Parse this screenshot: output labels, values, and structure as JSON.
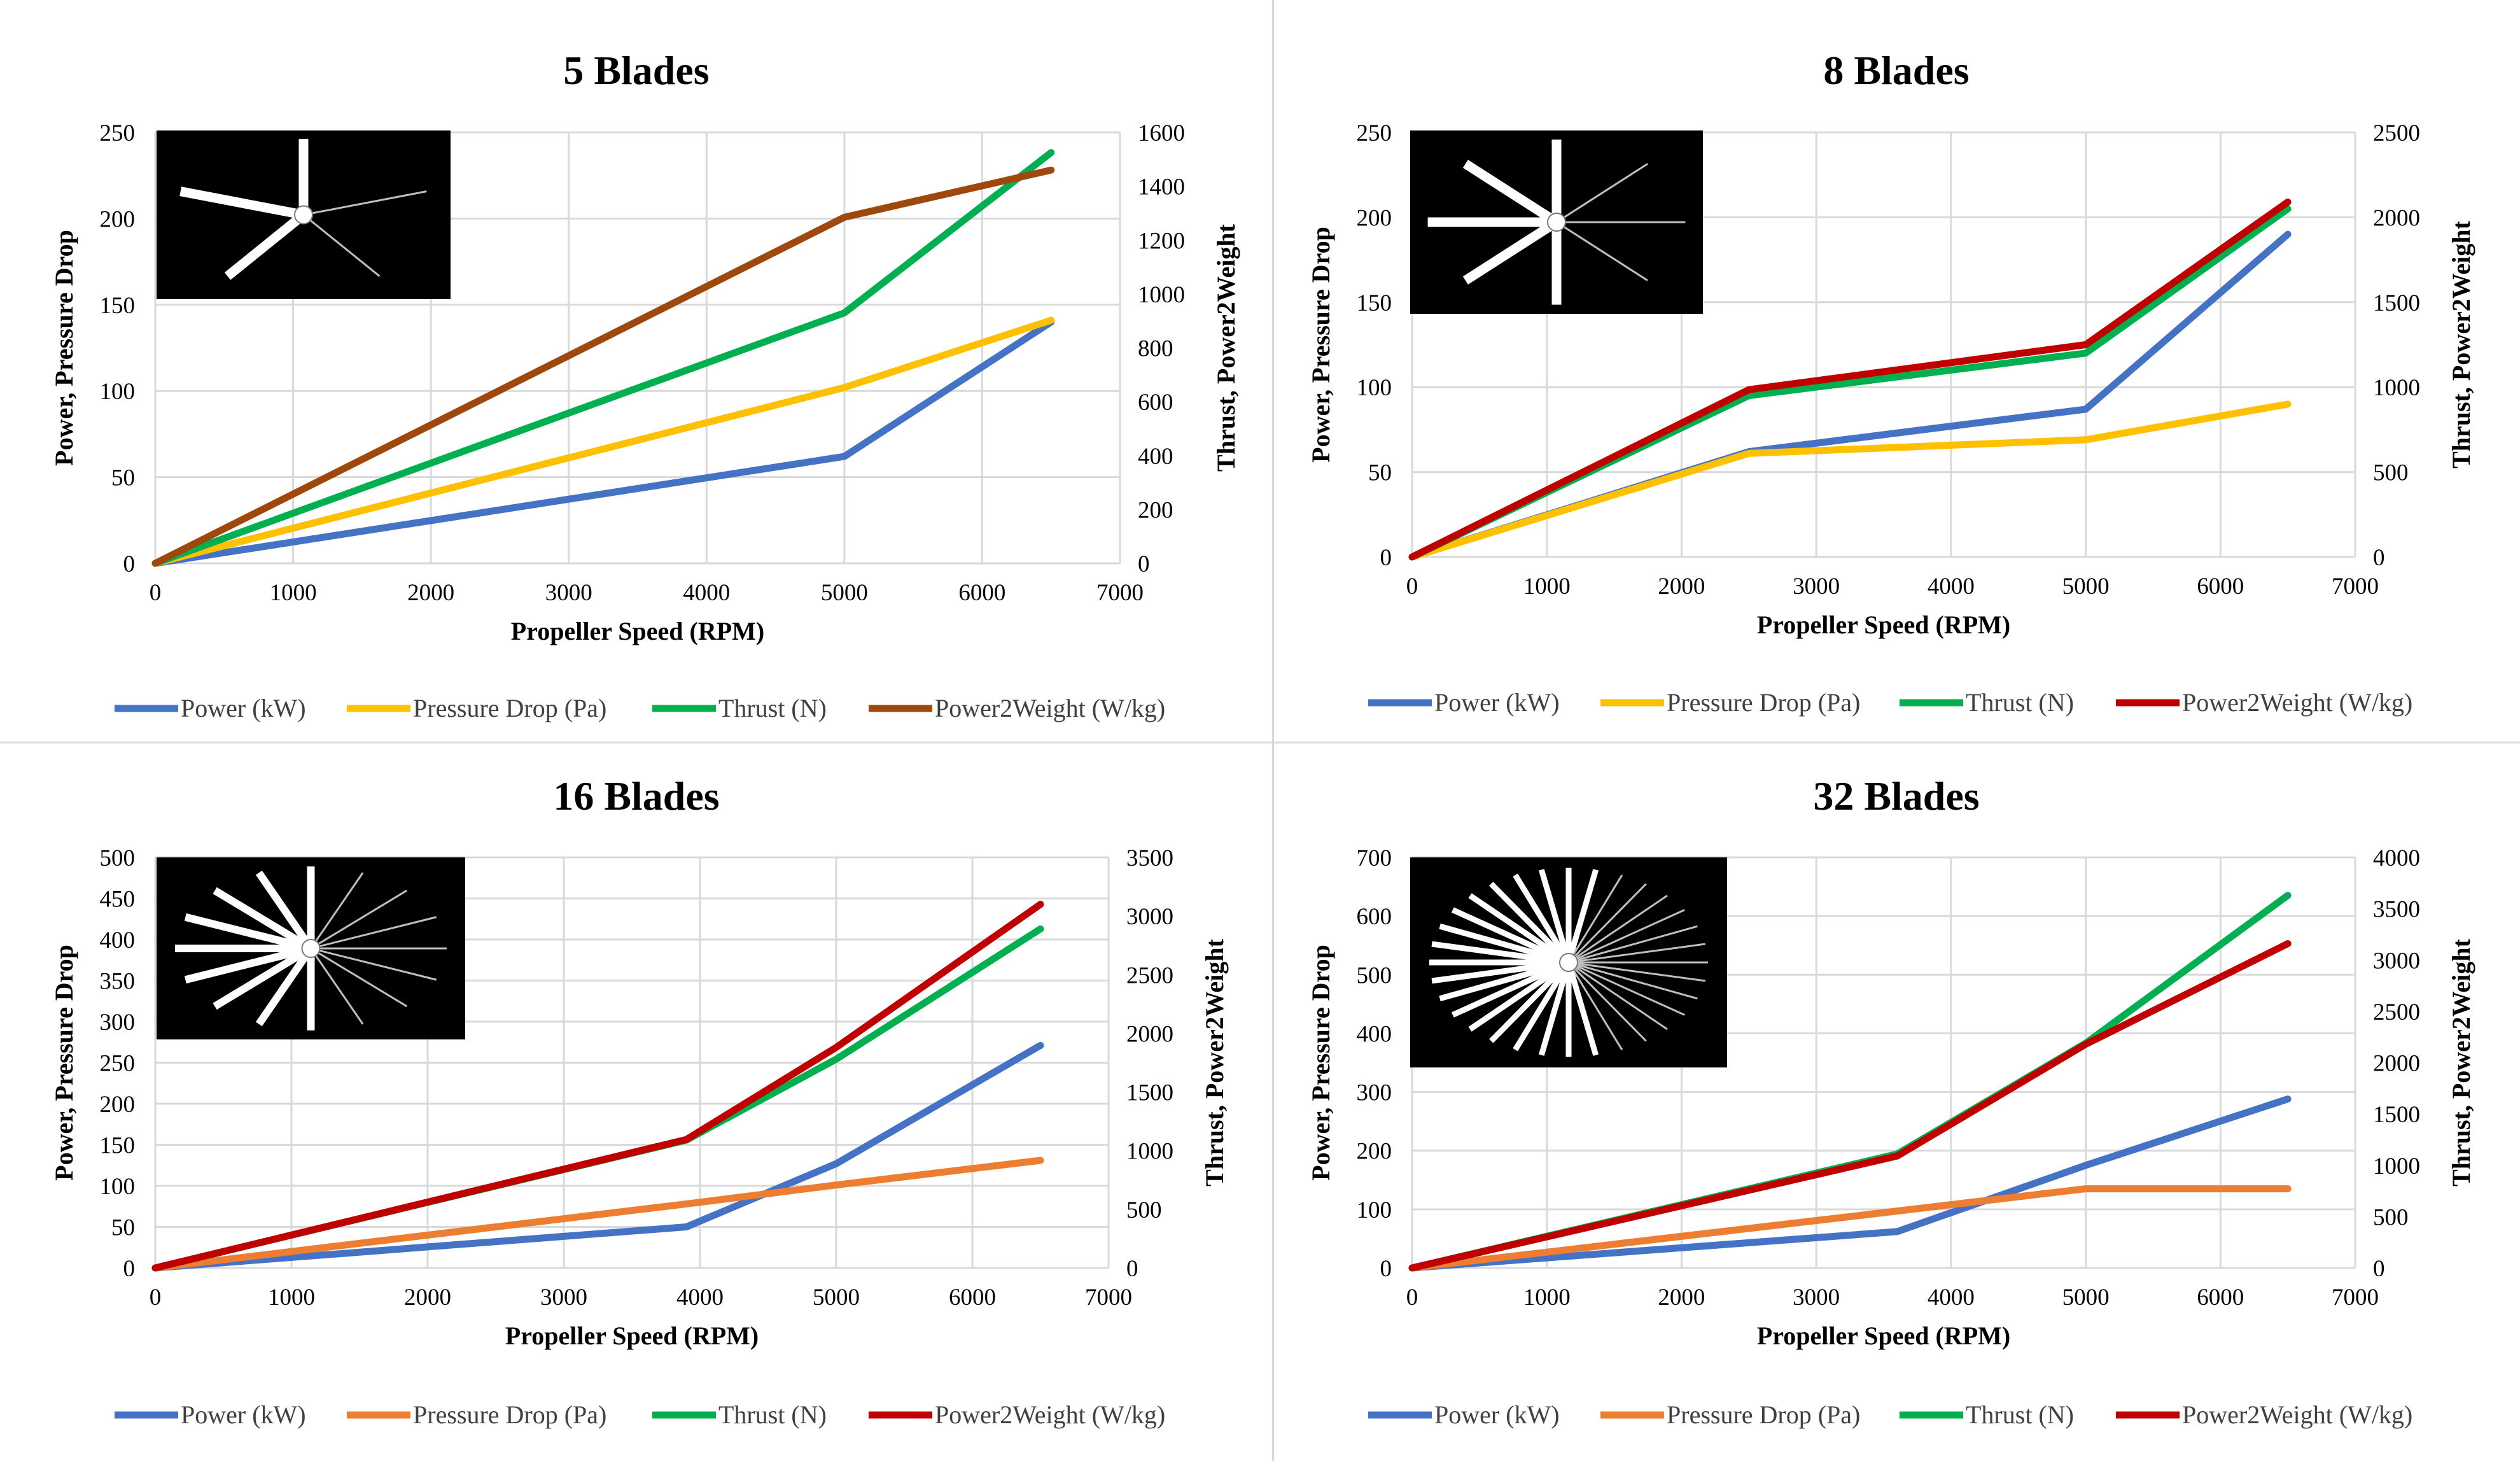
{
  "chart_data": [
    {
      "type": "line",
      "title": "5 Blades",
      "xlabel": "Propeller Speed (RPM)",
      "ylabel": "Power, Pressure Drop",
      "y2label": "Thrust, Power2Weight",
      "xlim": [
        0,
        7000
      ],
      "xticks": [
        0,
        1000,
        2000,
        3000,
        4000,
        5000,
        6000,
        7000
      ],
      "ylim": [
        0,
        250
      ],
      "yticks": [
        0,
        50,
        100,
        150,
        200,
        250
      ],
      "y2lim": [
        0,
        1600
      ],
      "y2ticks": [
        0,
        200,
        400,
        600,
        800,
        1000,
        1200,
        1400,
        1600
      ],
      "blades": 5,
      "series": [
        {
          "name": "Power (kW)",
          "color": "#4472c4",
          "axis": "left",
          "x": [
            0,
            5000,
            6500
          ],
          "values": [
            0,
            62,
            140
          ]
        },
        {
          "name": "Pressure Drop (Pa)",
          "color": "#ffc000",
          "axis": "left",
          "x": [
            0,
            5000,
            6500
          ],
          "values": [
            0,
            102,
            141
          ]
        },
        {
          "name": "Thrust (N)",
          "color": "#00b050",
          "axis": "right",
          "x": [
            0,
            5000,
            6500
          ],
          "values": [
            0,
            930,
            1525
          ]
        },
        {
          "name": "Power2Weight (W/kg)",
          "color": "#9e480e",
          "axis": "right",
          "x": [
            0,
            5000,
            6500
          ],
          "values": [
            0,
            1285,
            1460
          ]
        }
      ]
    },
    {
      "type": "line",
      "title": "8 Blades",
      "xlabel": "Propeller Speed (RPM)",
      "ylabel": "Power, Pressure Drop",
      "y2label": "Thrust, Power2Weight",
      "xlim": [
        0,
        7000
      ],
      "xticks": [
        0,
        1000,
        2000,
        3000,
        4000,
        5000,
        6000,
        7000
      ],
      "ylim": [
        0,
        250
      ],
      "yticks": [
        0,
        50,
        100,
        150,
        200,
        250
      ],
      "y2lim": [
        0,
        2500
      ],
      "y2ticks": [
        0,
        500,
        1000,
        1500,
        2000,
        2500
      ],
      "blades": 8,
      "series": [
        {
          "name": "Power (kW)",
          "color": "#4472c4",
          "axis": "left",
          "x": [
            0,
            2500,
            5000,
            6500
          ],
          "values": [
            0,
            62,
            87,
            190
          ]
        },
        {
          "name": "Pressure Drop (Pa)",
          "color": "#ffc000",
          "axis": "left",
          "x": [
            0,
            2500,
            5000,
            6500
          ],
          "values": [
            0,
            61,
            69,
            90
          ]
        },
        {
          "name": "Thrust (N)",
          "color": "#00b050",
          "axis": "right",
          "x": [
            0,
            2500,
            5000,
            6500
          ],
          "values": [
            0,
            950,
            1200,
            2050
          ]
        },
        {
          "name": "Power2Weight (W/kg)",
          "color": "#c00000",
          "axis": "right",
          "x": [
            0,
            2500,
            5000,
            6500
          ],
          "values": [
            0,
            985,
            1250,
            2090
          ]
        }
      ]
    },
    {
      "type": "line",
      "title": "16 Blades",
      "xlabel": "Propeller Speed (RPM)",
      "ylabel": "Power, Pressure Drop",
      "y2label": "Thrust, Power2Weight",
      "xlim": [
        0,
        7000
      ],
      "xticks": [
        0,
        1000,
        2000,
        3000,
        4000,
        5000,
        6000,
        7000
      ],
      "ylim": [
        0,
        500
      ],
      "yticks": [
        0,
        50,
        100,
        150,
        200,
        250,
        300,
        350,
        400,
        450,
        500
      ],
      "y2lim": [
        0,
        3500
      ],
      "y2ticks": [
        0,
        500,
        1000,
        1500,
        2000,
        2500,
        3000,
        3500
      ],
      "blades": 16,
      "series": [
        {
          "name": "Power (kW)",
          "color": "#4472c4",
          "axis": "left",
          "x": [
            0,
            3900,
            5000,
            6500
          ],
          "values": [
            0,
            50,
            127,
            271
          ]
        },
        {
          "name": "Pressure Drop (Pa)",
          "color": "#ed7d31",
          "axis": "left",
          "x": [
            0,
            3900,
            5000,
            6500
          ],
          "values": [
            0,
            78,
            101,
            131
          ]
        },
        {
          "name": "Thrust (N)",
          "color": "#00b050",
          "axis": "right",
          "x": [
            0,
            3900,
            5000,
            6500
          ],
          "values": [
            0,
            1090,
            1780,
            2890
          ]
        },
        {
          "name": "Power2Weight (W/kg)",
          "color": "#c00000",
          "axis": "right",
          "x": [
            0,
            3900,
            5000,
            6500
          ],
          "values": [
            0,
            1095,
            1880,
            3100
          ]
        }
      ]
    },
    {
      "type": "line",
      "title": "32 Blades",
      "xlabel": "Propeller Speed (RPM)",
      "ylabel": "Power, Pressure Drop",
      "y2label": "Thrust, Power2Weight",
      "xlim": [
        0,
        7000
      ],
      "xticks": [
        0,
        1000,
        2000,
        3000,
        4000,
        5000,
        6000,
        7000
      ],
      "ylim": [
        0,
        700
      ],
      "yticks": [
        0,
        100,
        200,
        300,
        400,
        500,
        600,
        700
      ],
      "y2lim": [
        0,
        4000
      ],
      "y2ticks": [
        0,
        500,
        1000,
        1500,
        2000,
        2500,
        3000,
        3500,
        4000
      ],
      "blades": 32,
      "series": [
        {
          "name": "Power (kW)",
          "color": "#4472c4",
          "axis": "left",
          "x": [
            0,
            3600,
            5000,
            6500
          ],
          "values": [
            0,
            62,
            175,
            288
          ]
        },
        {
          "name": "Pressure Drop (Pa)",
          "color": "#ed7d31",
          "axis": "left",
          "x": [
            0,
            3600,
            5000,
            6500
          ],
          "values": [
            0,
            97,
            135,
            135
          ]
        },
        {
          "name": "Thrust (N)",
          "color": "#00b050",
          "axis": "right",
          "x": [
            0,
            3600,
            5000,
            6500
          ],
          "values": [
            0,
            1110,
            2190,
            3630
          ]
        },
        {
          "name": "Power2Weight (W/kg)",
          "color": "#c00000",
          "axis": "right",
          "x": [
            0,
            3600,
            5000,
            6500
          ],
          "values": [
            0,
            1090,
            2180,
            3160
          ]
        }
      ]
    }
  ]
}
